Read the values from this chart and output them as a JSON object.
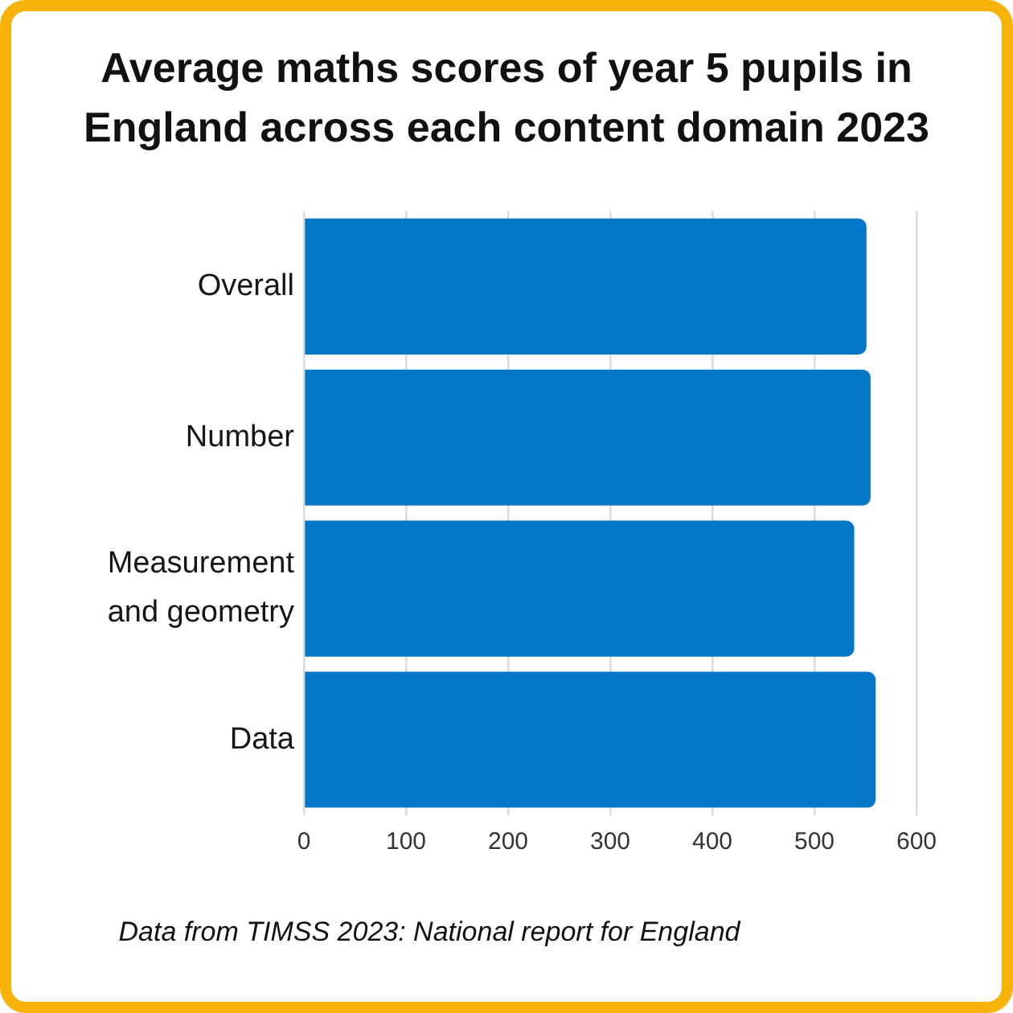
{
  "chart_data": {
    "type": "bar",
    "orientation": "horizontal",
    "title": "Average maths scores of year 5 pupils in England across each content domain 2023",
    "categories": [
      "Overall",
      "Number",
      "Measurement and geometry",
      "Data"
    ],
    "values": [
      551,
      555,
      539,
      560
    ],
    "color": "#0676c6",
    "xlim": [
      0,
      600
    ],
    "xticks": [
      0,
      100,
      200,
      300,
      400,
      500,
      600
    ],
    "grid": "x",
    "annotations": [
      "Data from TIMSS 2023: National report for England"
    ]
  }
}
